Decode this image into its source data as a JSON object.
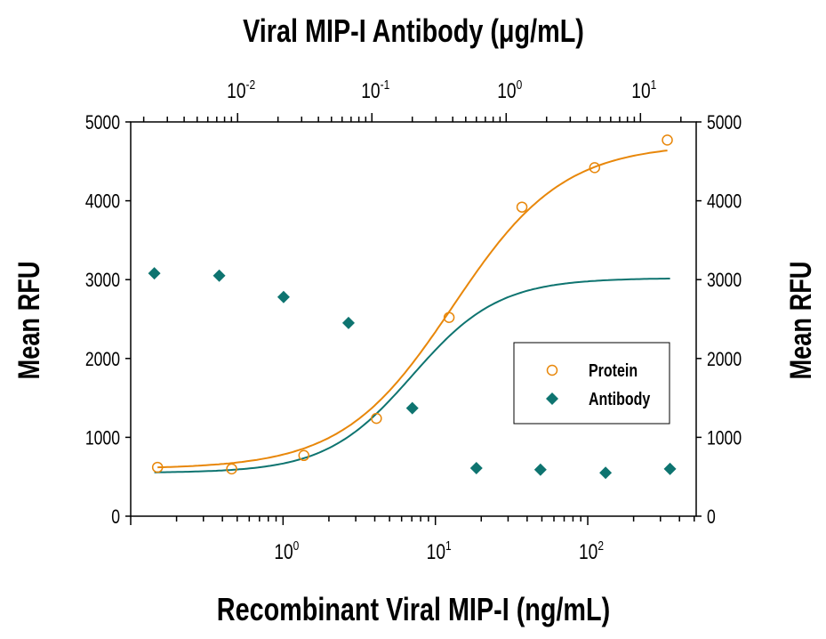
{
  "chart_data": {
    "type": "scatter",
    "top_title": "Viral MIP-I Antibody (μg/mL)",
    "xlabel": "Recombinant Viral MIP-I (ng/mL)",
    "ylabel_left": "Mean RFU",
    "ylabel_right": "Mean RFU",
    "x_scale": "log",
    "x_bottom_range": [
      0.1,
      515
    ],
    "x_top_range": [
      0.0016,
      26
    ],
    "x_bottom_ticks": [
      {
        "base": "10",
        "exp": "0"
      },
      {
        "base": "10",
        "exp": "1"
      },
      {
        "base": "10",
        "exp": "2"
      }
    ],
    "x_bottom_tick_values": [
      1,
      10,
      100
    ],
    "x_top_ticks": [
      {
        "base": "10",
        "exp": "-2"
      },
      {
        "base": "10",
        "exp": "-1"
      },
      {
        "base": "10",
        "exp": "0"
      },
      {
        "base": "10",
        "exp": "1"
      }
    ],
    "x_top_tick_values": [
      0.01,
      0.1,
      1,
      10
    ],
    "ylim": [
      0,
      5000
    ],
    "y_ticks": [
      "0",
      "1000",
      "2000",
      "3000",
      "4000",
      "5000"
    ],
    "grid": false,
    "legend_position": "center-right",
    "series": [
      {
        "name": "Protein",
        "axis": "bottom",
        "marker": "open-circle",
        "color": "#E8870A",
        "x": [
          0.15,
          0.46,
          1.37,
          4.1,
          12.3,
          37,
          111,
          333
        ],
        "y": [
          620,
          600,
          770,
          1240,
          2520,
          3920,
          4420,
          4770
        ]
      },
      {
        "name": "Antibody",
        "axis": "top",
        "marker": "filled-diamond",
        "color": "#0E7470",
        "x": [
          0.0024,
          0.0073,
          0.022,
          0.067,
          0.2,
          0.6,
          1.8,
          5.5,
          16.6
        ],
        "y": [
          3080,
          3050,
          2780,
          2450,
          1370,
          610,
          590,
          550,
          600
        ]
      }
    ]
  }
}
